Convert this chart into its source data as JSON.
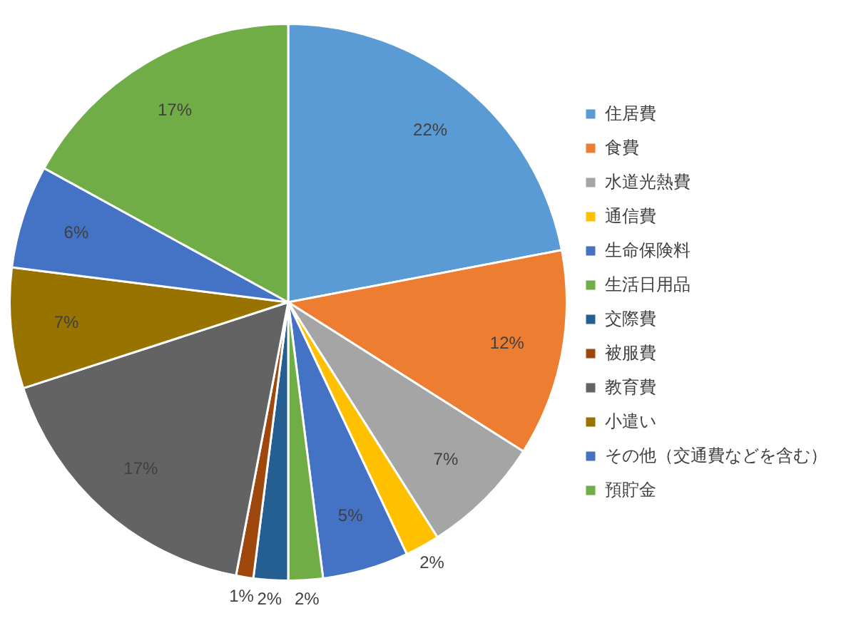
{
  "chart_data": {
    "type": "pie",
    "categories": [
      "住居費",
      "食費",
      "水道光熱費",
      "通信費",
      "生命保険料",
      "生活日用品",
      "交際費",
      "被服費",
      "教育費",
      "小遣い",
      "その他（交通費などを含む）",
      "預貯金"
    ],
    "values": [
      22,
      12,
      7,
      2,
      5,
      2,
      2,
      1,
      17,
      7,
      6,
      17
    ],
    "value_labels": [
      "22%",
      "12%",
      "7%",
      "2%",
      "5%",
      "2%",
      "2%",
      "1%",
      "17%",
      "7%",
      "6%",
      "17%"
    ],
    "colors": [
      "#5b9bd5",
      "#ed7d31",
      "#a5a5a5",
      "#ffc000",
      "#4472c4",
      "#70ad47",
      "#255e91",
      "#9e480e",
      "#636363",
      "#997300",
      "#4472c4",
      "#70ad47"
    ],
    "legend": "right"
  }
}
